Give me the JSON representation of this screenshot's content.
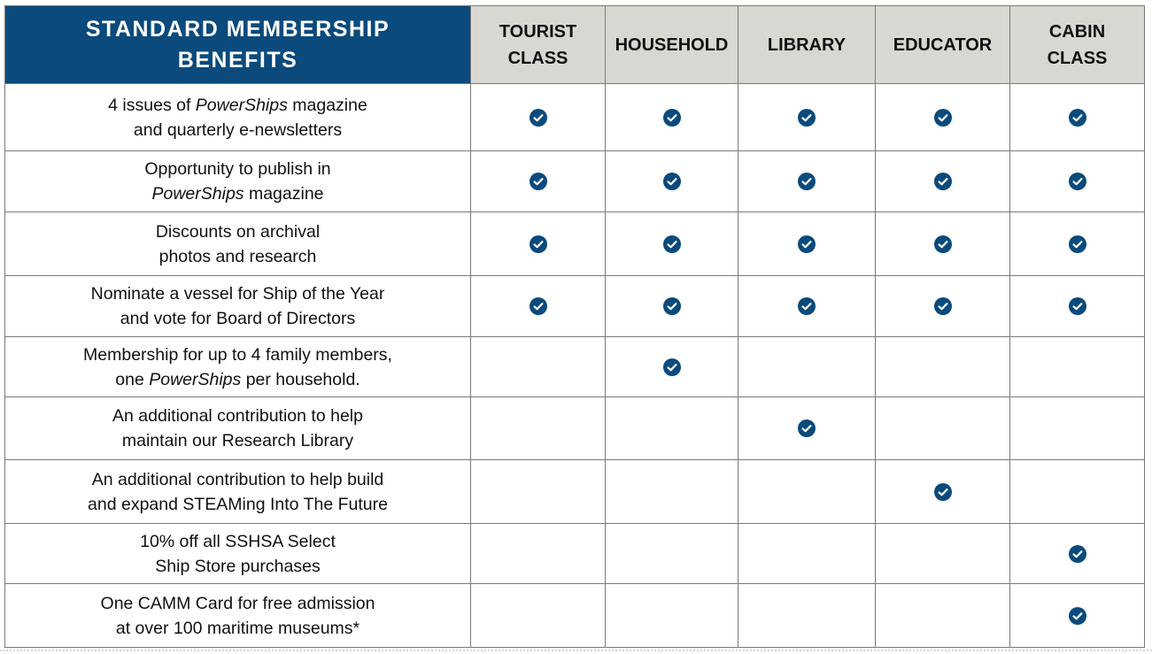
{
  "header": {
    "title_line1": "STANDARD MEMBERSHIP",
    "title_line2": "BENEFITS",
    "columns": [
      {
        "line1": "TOURIST",
        "line2": "CLASS"
      },
      {
        "line1": "HOUSEHOLD",
        "line2": ""
      },
      {
        "line1": "LIBRARY",
        "line2": ""
      },
      {
        "line1": "EDUCATOR",
        "line2": ""
      },
      {
        "line1": "CABIN",
        "line2": "CLASS"
      }
    ]
  },
  "check_color": "#0a4a7c",
  "check_icon": "check-circle-icon",
  "rows": [
    {
      "line1": [
        {
          "t": "4 issues of "
        },
        {
          "t": "PowerShips",
          "i": true
        },
        {
          "t": " magazine"
        }
      ],
      "line2": [
        {
          "t": "and quarterly e-newsletters"
        }
      ],
      "checks": [
        true,
        true,
        true,
        true,
        true
      ]
    },
    {
      "line1": [
        {
          "t": "Opportunity to publish in"
        }
      ],
      "line2": [
        {
          "t": "PowerShips",
          "i": true
        },
        {
          "t": " magazine"
        }
      ],
      "checks": [
        true,
        true,
        true,
        true,
        true
      ]
    },
    {
      "line1": [
        {
          "t": "Discounts on archival"
        }
      ],
      "line2": [
        {
          "t": "photos and research"
        }
      ],
      "checks": [
        true,
        true,
        true,
        true,
        true
      ]
    },
    {
      "line1": [
        {
          "t": "Nominate a vessel for Ship of the Year"
        }
      ],
      "line2": [
        {
          "t": "and vote for Board of Directors"
        }
      ],
      "checks": [
        true,
        true,
        true,
        true,
        true
      ]
    },
    {
      "line1": [
        {
          "t": "Membership for up to 4 family members,"
        }
      ],
      "line2": [
        {
          "t": "one "
        },
        {
          "t": "PowerShips",
          "i": true
        },
        {
          "t": " per household."
        }
      ],
      "checks": [
        false,
        true,
        false,
        false,
        false
      ]
    },
    {
      "line1": [
        {
          "t": "An additional contribution to help"
        }
      ],
      "line2": [
        {
          "t": "maintain our Research Library"
        }
      ],
      "checks": [
        false,
        false,
        true,
        false,
        false
      ]
    },
    {
      "line1": [
        {
          "t": "An additional contribution to help build"
        }
      ],
      "line2": [
        {
          "t": "and expand STEAMing Into The Future"
        }
      ],
      "checks": [
        false,
        false,
        false,
        true,
        false
      ]
    },
    {
      "line1": [
        {
          "t": "10% off all SSHSA Select"
        }
      ],
      "line2": [
        {
          "t": "Ship Store purchases"
        }
      ],
      "checks": [
        false,
        false,
        false,
        false,
        true
      ]
    },
    {
      "line1": [
        {
          "t": "One CAMM Card for free admission"
        }
      ],
      "line2": [
        {
          "t": "at over 100 maritime museums*"
        }
      ],
      "checks": [
        false,
        false,
        false,
        false,
        true
      ]
    }
  ]
}
